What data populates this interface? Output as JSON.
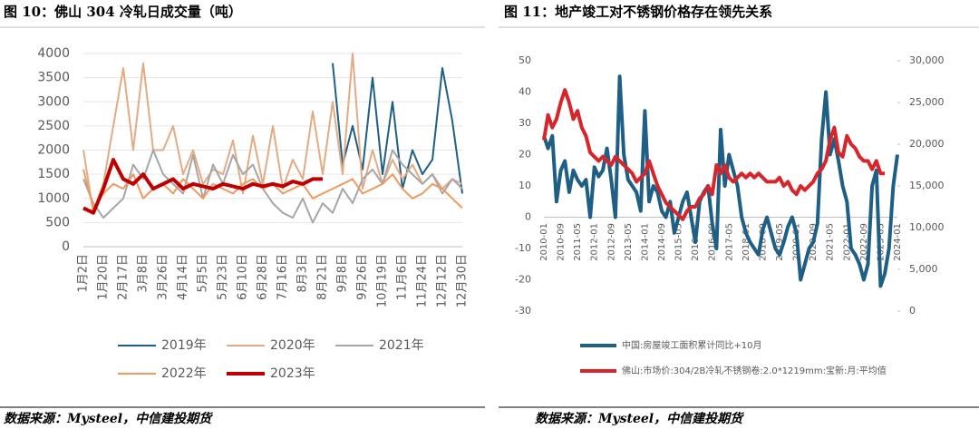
{
  "chart_data": [
    {
      "type": "line",
      "title": "图 10：佛山 304 冷轧日成交量（吨）",
      "source": "数据来源：Mysteel，中信建投期货",
      "categories": [
        "1月2日",
        null,
        "1月20日",
        null,
        "2月17日",
        null,
        "3月8日",
        null,
        "3月26日",
        null,
        "4月14日",
        null,
        "5月5日",
        null,
        "5月23日",
        null,
        "6月10日",
        null,
        "6月28日",
        null,
        "7月16日",
        null,
        "8月3日",
        null,
        "8月21日",
        null,
        "9月8日",
        null,
        "9月26日",
        null,
        "10月19日",
        null,
        "11月6日",
        null,
        "11月24日",
        null,
        "12月12日",
        null,
        "12月30日"
      ],
      "ylim": [
        0,
        4000
      ],
      "yticks": [
        0,
        500,
        1000,
        1500,
        2000,
        2500,
        3000,
        3500,
        4000
      ],
      "series": [
        {
          "name": "2019年",
          "color": "#1f5f86",
          "width": 2,
          "values": [
            null,
            null,
            null,
            null,
            null,
            null,
            null,
            null,
            null,
            null,
            null,
            null,
            null,
            null,
            null,
            null,
            null,
            null,
            null,
            null,
            null,
            null,
            null,
            null,
            null,
            3800,
            1700,
            2500,
            1600,
            3500,
            1500,
            3000,
            1200,
            2000,
            1500,
            1800,
            3700,
            2600,
            1100
          ]
        },
        {
          "name": "2020年",
          "color": "#e3ab84",
          "width": 2,
          "values": [
            2000,
            700,
            1300,
            2500,
            3700,
            2000,
            3800,
            2000,
            2000,
            2500,
            1500,
            2000,
            1300,
            1600,
            1500,
            2200,
            1100,
            2300,
            1300,
            2500,
            1200,
            1800,
            1400,
            2800,
            1500,
            3000,
            1500,
            4000,
            1200,
            2000,
            1300,
            1800,
            1400,
            1700,
            1300,
            1500,
            1200,
            1400,
            1300
          ]
        },
        {
          "name": "2021年",
          "color": "#a6a6a6",
          "width": 2,
          "values": [
            1400,
            900,
            600,
            800,
            1000,
            1700,
            1400,
            2000,
            1500,
            1300,
            1100,
            1900,
            1000,
            1700,
            1300,
            1900,
            1500,
            1700,
            1200,
            900,
            700,
            600,
            1000,
            500,
            900,
            700,
            1200,
            900,
            1400,
            1600,
            1300,
            2000,
            1700,
            1500,
            1300,
            1500,
            1100,
            1400,
            1200
          ]
        },
        {
          "name": "2022年",
          "color": "#ef9a5e",
          "width": 2,
          "values": [
            1600,
            800,
            1100,
            1300,
            1200,
            1500,
            1000,
            1200,
            1300,
            1100,
            1400,
            1200,
            1000,
            1300,
            1200,
            1100,
            1300,
            1400,
            1200,
            1300,
            1100,
            1200,
            1300,
            1000,
            1100,
            1200,
            1300,
            1400,
            1100,
            1200,
            1300,
            1500,
            1200,
            1000,
            1100,
            1300,
            1200,
            1000,
            800
          ]
        },
        {
          "name": "2023年",
          "color": "#c00000",
          "width": 4,
          "values": [
            800,
            700,
            1200,
            1800,
            1400,
            1300,
            1500,
            1200,
            1300,
            1400,
            1200,
            1300,
            1250,
            1200,
            1300,
            1250,
            1200,
            1300,
            1250,
            1300,
            1250,
            1350,
            1300,
            1400,
            1400,
            null,
            null,
            null,
            null,
            null,
            null,
            null,
            null,
            null,
            null,
            null,
            null,
            null,
            null
          ]
        }
      ]
    },
    {
      "type": "line",
      "title": "图 11：地产竣工对不锈钢价格存在领先关系",
      "source": "数据来源：Mysteel，中信建投期货",
      "categories": [
        "2010-01",
        null,
        null,
        null,
        "2010-09",
        null,
        null,
        null,
        "2011-05",
        null,
        null,
        null,
        "2012-01",
        null,
        null,
        null,
        "2012-09",
        null,
        null,
        null,
        "2013-05",
        null,
        null,
        null,
        "2014-01",
        null,
        null,
        null,
        "2014-09",
        null,
        null,
        null,
        "2015-05",
        null,
        null,
        null,
        "2016-01",
        null,
        null,
        null,
        "2016-09",
        null,
        null,
        null,
        "2017-05",
        null,
        null,
        null,
        "2018-01",
        null,
        null,
        null,
        "2018-09",
        null,
        null,
        null,
        "2019-05",
        null,
        null,
        null,
        "2020-01",
        null,
        null,
        null,
        "2020-09",
        null,
        null,
        null,
        "2021-05",
        null,
        null,
        null,
        "2022-01",
        null,
        null,
        null,
        "2022-09",
        null,
        null,
        null,
        "2023-05",
        null,
        null,
        null,
        "2024-01"
      ],
      "ylim": [
        -30,
        50
      ],
      "yticks": [
        -30,
        -20,
        -10,
        0,
        10,
        20,
        30,
        40,
        50
      ],
      "y2lim": [
        0,
        30000
      ],
      "y2ticks": [
        0,
        {
          "value": 5000,
          "label": "5,000"
        },
        {
          "value": 10000,
          "label": "10,000"
        },
        {
          "value": 15000,
          "label": "15,000"
        },
        {
          "value": 20000,
          "label": "20,000"
        },
        {
          "value": 25000,
          "label": "25,000"
        },
        {
          "value": 30000,
          "label": "30,000"
        }
      ],
      "series": [
        {
          "name": "中国:房屋竣工面积累计同比+10月",
          "color": "#1f5f86",
          "width": 4,
          "values": [
            26,
            22,
            26,
            5,
            15,
            18,
            8,
            15,
            12,
            10,
            12,
            0,
            16,
            13,
            15,
            22,
            12,
            0,
            45,
            20,
            12,
            10,
            8,
            2,
            34,
            5,
            10,
            8,
            2,
            0,
            5,
            -5,
            0,
            5,
            8,
            0,
            -8,
            5,
            8,
            10,
            -2,
            -10,
            28,
            10,
            20,
            15,
            10,
            0,
            -5,
            -8,
            -10,
            -12,
            -4,
            0,
            -5,
            -10,
            -12,
            -8,
            -3,
            0,
            -5,
            -20,
            -15,
            -10,
            -8,
            -2,
            25,
            40,
            20,
            25,
            18,
            10,
            5,
            -10,
            -12,
            -15,
            -20,
            -15,
            10,
            15,
            -22,
            -18,
            -10,
            10,
            20
          ]
        },
        {
          "name": "佛山:市场价:304/2B冷轧不锈钢卷:2.0*1219mm:宝新:月:平均值",
          "color": "#d7262b",
          "width": 4,
          "axis": "y2",
          "values": [
            20500,
            23500,
            22000,
            23000,
            25000,
            26500,
            25000,
            23000,
            24000,
            22000,
            21000,
            19000,
            18500,
            18000,
            18500,
            18000,
            17500,
            18500,
            18000,
            17500,
            17000,
            16500,
            15500,
            16000,
            16500,
            18000,
            16500,
            15000,
            14000,
            13000,
            12500,
            12000,
            11500,
            11000,
            12000,
            12500,
            12500,
            13500,
            14000,
            15000,
            14000,
            17500,
            16500,
            17500,
            16000,
            15500,
            16000,
            16500,
            16000,
            16500,
            16000,
            16500,
            16000,
            15500,
            15500,
            15500,
            16000,
            15000,
            15500,
            14500,
            14000,
            15000,
            14500,
            15000,
            15500,
            16500,
            17000,
            18000,
            20500,
            22000,
            19000,
            18500,
            21000,
            20000,
            19500,
            18500,
            18000,
            18000,
            17000,
            18000,
            16500,
            16500,
            null,
            null,
            null
          ]
        }
      ]
    }
  ]
}
